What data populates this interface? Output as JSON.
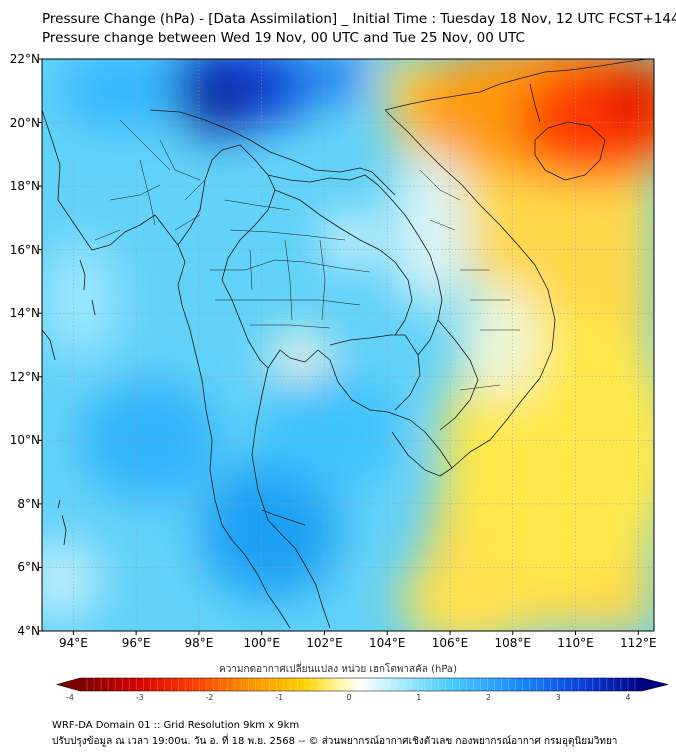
{
  "title": {
    "line1": "Pressure Change (hPa) - [Data Assimilation] _ Initial Time : Tuesday 18 Nov, 12 UTC FCST+144",
    "line2": "Pressure change between Wed 19 Nov, 00 UTC and Tue 25 Nov, 00 UTC"
  },
  "map": {
    "lat_range": [
      4,
      22
    ],
    "lon_range": [
      93,
      112.5
    ],
    "lat_ticks": [
      {
        "value": 22,
        "label": "22°N"
      },
      {
        "value": 20,
        "label": "20°N"
      },
      {
        "value": 18,
        "label": "18°N"
      },
      {
        "value": 16,
        "label": "16°N"
      },
      {
        "value": 14,
        "label": "14°N"
      },
      {
        "value": 12,
        "label": "12°N"
      },
      {
        "value": 10,
        "label": "10°N"
      },
      {
        "value": 8,
        "label": "8°N"
      },
      {
        "value": 6,
        "label": "6°N"
      },
      {
        "value": 4,
        "label": "4°N"
      }
    ],
    "lon_ticks": [
      {
        "value": 94,
        "label": "94°E"
      },
      {
        "value": 96,
        "label": "96°E"
      },
      {
        "value": 98,
        "label": "98°E"
      },
      {
        "value": 100,
        "label": "100°E"
      },
      {
        "value": 102,
        "label": "102°E"
      },
      {
        "value": 104,
        "label": "104°E"
      },
      {
        "value": 106,
        "label": "106°E"
      },
      {
        "value": 108,
        "label": "108°E"
      },
      {
        "value": 110,
        "label": "110°E"
      },
      {
        "value": 112,
        "label": "112°E"
      }
    ],
    "grid": true
  },
  "colorbar": {
    "title": "ความกดอากาศเปลี่ยนแปลง หน่วย เฮกโตพาสคัล (hPa)",
    "range": [
      -4,
      4
    ],
    "ticks": [
      "-4",
      "-3",
      "-2",
      "-1",
      "0",
      "1",
      "2",
      "3",
      "4"
    ],
    "colors": [
      "#7a0000",
      "#d40000",
      "#ff2a00",
      "#ff7a00",
      "#ffc000",
      "#fff080",
      "#ffffff",
      "#a8ecff",
      "#3ec8ff",
      "#1a8cff",
      "#0a3cd8",
      "#000080"
    ]
  },
  "footer": {
    "line1": "WRF-DA Domain 01 :: Grid Resolution 9km x 9km",
    "line2": "ปรับปรุงข้อมูล ณ เวลา 19:00น. วัน อ. ที่ 18 พ.ย. 2568 -- © ส่วนพยากรณ์อากาศเชิงตัวเลข กองพยากรณ์อากาศ กรมอุตุนิยมวิทยา"
  }
}
